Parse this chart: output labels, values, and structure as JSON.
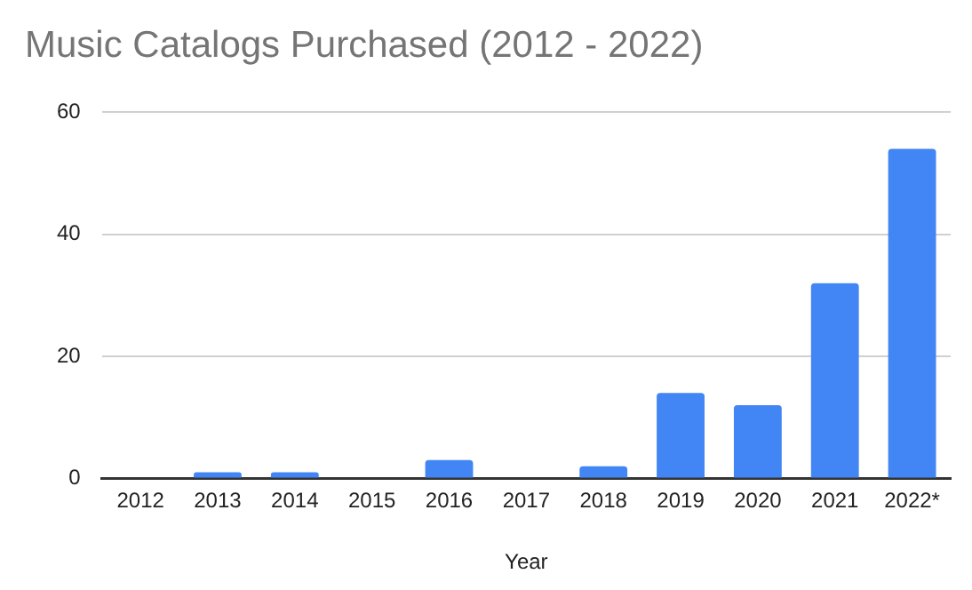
{
  "chart_data": {
    "type": "bar",
    "title": "Music Catalogs Purchased (2012 - 2022)",
    "xlabel": "Year",
    "categories": [
      "2012",
      "2013",
      "2014",
      "2015",
      "2016",
      "2017",
      "2018",
      "2019",
      "2020",
      "2021",
      "2022*"
    ],
    "values": [
      0,
      1,
      1,
      0,
      3,
      0,
      2,
      14,
      12,
      32,
      54
    ],
    "color": "#4285f4",
    "ylim": [
      0,
      60
    ],
    "yticks": [
      0,
      20,
      40,
      60
    ],
    "grid": "y",
    "legend": false
  }
}
